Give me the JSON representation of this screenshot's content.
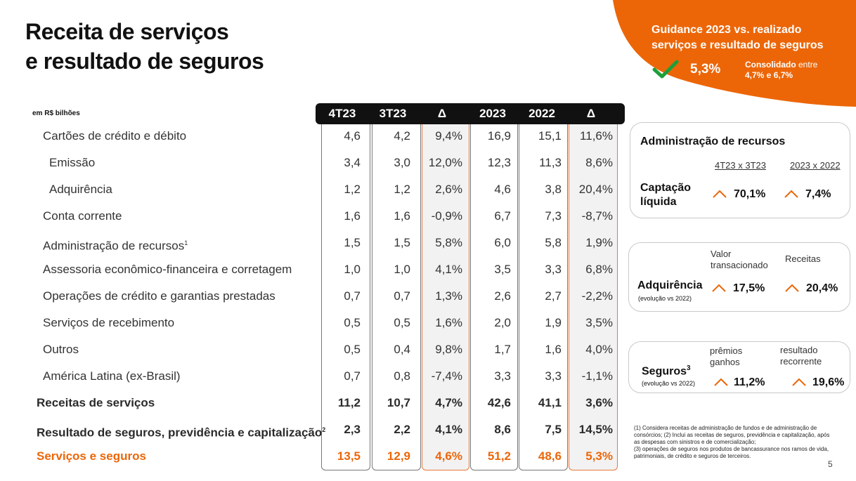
{
  "title": {
    "line1": "Receita de serviços",
    "line2": "e resultado de seguros"
  },
  "guidance": {
    "line1": "Guidance 2023 vs. realizado",
    "line2": "serviços e resultado de seguros",
    "value": "5,3%",
    "note_bold": "Consolidado",
    "note_rest": " entre",
    "note_line2": "4,7% e 6,7%",
    "colors": {
      "accent": "#ec6608",
      "check": "#1e9e3a"
    }
  },
  "table": {
    "unit": "em R$ bilhões",
    "columns": [
      "4T23",
      "3T23",
      "Δ",
      "2023",
      "2022",
      "Δ"
    ],
    "rows": [
      {
        "label": "Cartões de crédito e débito",
        "values": [
          "4,6",
          "4,2",
          "9,4%",
          "16,9",
          "15,1",
          "11,6%"
        ]
      },
      {
        "label": "Emissão",
        "values": [
          "3,4",
          "3,0",
          "12,0%",
          "12,3",
          "11,3",
          "8,6%"
        ]
      },
      {
        "label": "Adquirência",
        "values": [
          "1,2",
          "1,2",
          "2,6%",
          "4,6",
          "3,8",
          "20,4%"
        ]
      },
      {
        "label": "Conta corrente",
        "values": [
          "1,6",
          "1,6",
          "-0,9%",
          "6,7",
          "7,3",
          "-8,7%"
        ]
      },
      {
        "label": "Administração de recursos",
        "sup": "1",
        "values": [
          "1,5",
          "1,5",
          "5,8%",
          "6,0",
          "5,8",
          "1,9%"
        ]
      },
      {
        "label": "Assessoria econômico-financeira e corretagem",
        "values": [
          "1,0",
          "1,0",
          "4,1%",
          "3,5",
          "3,3",
          "6,8%"
        ]
      },
      {
        "label": "Operações de crédito e garantias prestadas",
        "values": [
          "0,7",
          "0,7",
          "1,3%",
          "2,6",
          "2,7",
          "-2,2%"
        ]
      },
      {
        "label": "Serviços de recebimento",
        "values": [
          "0,5",
          "0,5",
          "1,6%",
          "2,0",
          "1,9",
          "3,5%"
        ]
      },
      {
        "label": "Outros",
        "values": [
          "0,5",
          "0,4",
          "9,8%",
          "1,7",
          "1,6",
          "4,0%"
        ]
      },
      {
        "label": "América Latina (ex-Brasil)",
        "values": [
          "0,7",
          "0,8",
          "-7,4%",
          "3,3",
          "3,3",
          "-1,1%"
        ]
      },
      {
        "label": "Receitas de serviços",
        "values": [
          "11,2",
          "10,7",
          "4,7%",
          "42,6",
          "41,1",
          "3,6%"
        ]
      },
      {
        "label": "Resultado de seguros, previdência e capitalização",
        "sup": "2",
        "values": [
          "2,3",
          "2,2",
          "4,1%",
          "8,6",
          "7,5",
          "14,5%"
        ]
      },
      {
        "label": "Serviços e seguros",
        "values": [
          "13,5",
          "12,9",
          "4,6%",
          "51,2",
          "48,6",
          "5,3%"
        ]
      }
    ]
  },
  "cards": {
    "admin": {
      "title": "Administração de recursos",
      "col1": "4T23 x 3T23",
      "col2": "2023 x 2022",
      "label_line1": "Captação",
      "label_line2": "líquida",
      "val1": "70,1%",
      "val2": "7,4%"
    },
    "adq": {
      "col1_line1": "Valor",
      "col1_line2": "transacionado",
      "col2": "Receitas",
      "label": "Adquirência",
      "sublabel": "(evolução vs 2022)",
      "val1": "17,5%",
      "val2": "20,4%"
    },
    "seg": {
      "col1_line1": "prêmios",
      "col1_line2": "ganhos",
      "col2_line1": "resultado",
      "col2_line2": "recorrente",
      "label": "Seguros",
      "label_sup": "3",
      "sublabel": "(evolução vs 2022)",
      "val1": "11,2%",
      "val2": "19,6%"
    }
  },
  "footnotes": [
    "(1) Considera receitas de administração de fundos e de administração de consórcios; (2) Inclui as receitas de seguros, previdência e capitalização, após as despesas com sinistros e de comercialização;",
    "(3) operações de seguros nos produtos de bancassurance nos ramos de vida, patrimoniais, de crédito e seguros de terceiros."
  ],
  "page_number": "5"
}
